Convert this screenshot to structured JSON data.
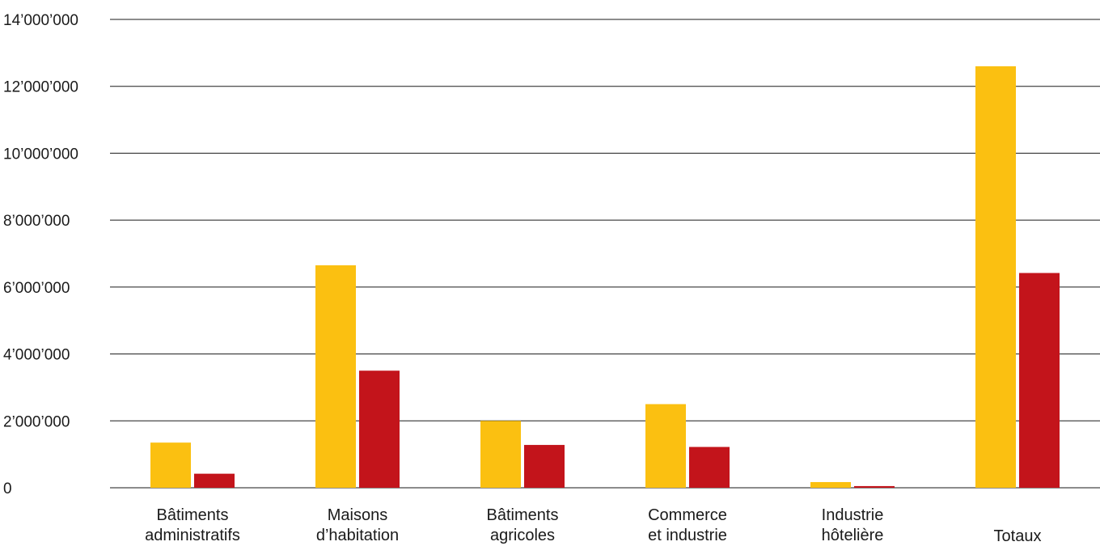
{
  "chart_data": {
    "type": "bar",
    "categories": [
      [
        "Bâtiments",
        "administratifs"
      ],
      [
        "Maisons",
        "d’habitation"
      ],
      [
        "Bâtiments",
        "agricoles"
      ],
      [
        "Commerce",
        "et industrie"
      ],
      [
        "Industrie",
        "hôtelière"
      ],
      [
        "Totaux"
      ]
    ],
    "series": [
      {
        "values": [
          1350000,
          6650000,
          2000000,
          2500000,
          170000,
          12600000
        ],
        "color": "#fbc011"
      },
      {
        "values": [
          420000,
          3500000,
          1280000,
          1220000,
          50000,
          6420000
        ],
        "color": "#c3141b"
      }
    ],
    "ylim": [
      0,
      14000000
    ],
    "yticks": [
      0,
      2000000,
      4000000,
      6000000,
      8000000,
      10000000,
      12000000,
      14000000
    ],
    "ytick_labels": [
      "0",
      "2’000’000",
      "4’000’000",
      "6’000’000",
      "8’000’000",
      "10’000’000",
      "12’000’000",
      "14’000’000"
    ],
    "grid": true,
    "title": "",
    "xlabel": "",
    "ylabel": ""
  }
}
